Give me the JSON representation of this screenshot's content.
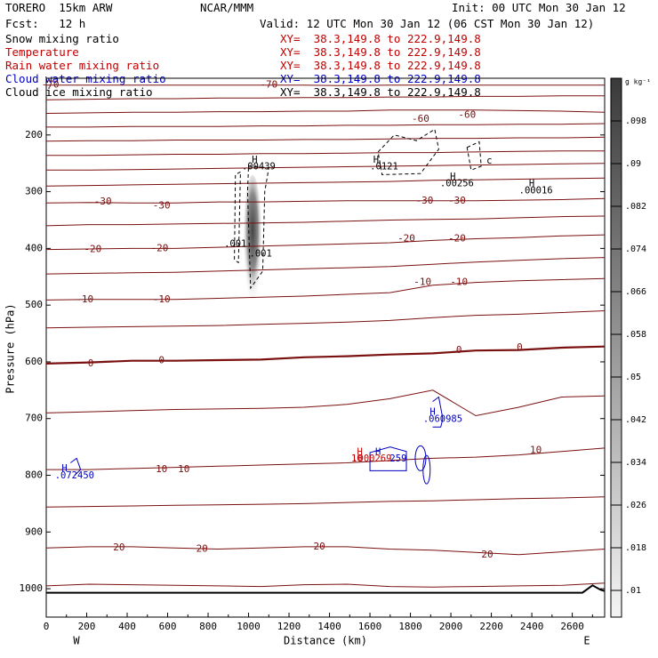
{
  "header": {
    "model": "TORERO  15km ARW",
    "org": "NCAR/MMM",
    "init": "Init: 00 UTC Mon 30 Jan 12",
    "fcst": "Fcst:   12 h",
    "valid": "Valid: 12 UTC Mon 30 Jan 12 (06 CST Mon 30 Jan 12)"
  },
  "legend": [
    {
      "name": "Snow mixing ratio",
      "xy": "XY=  38.3,149.8 to 222.9,149.8",
      "color": "#000000"
    },
    {
      "name": "Temperature",
      "xy": "XY=  38.3,149.8 to 222.9,149.8",
      "color": "#c00000"
    },
    {
      "name": "Rain water mixing ratio",
      "xy": "XY=  38.3,149.8 to 222.9,149.8",
      "color": "#c00000"
    },
    {
      "name": "Cloud water mixing ratio",
      "xy": "XY=  38.3,149.8 to 222.9,149.8",
      "color": "#0000c0"
    },
    {
      "name": "Cloud ice mixing ratio",
      "xy": "XY=  38.3,149.8 to 222.9,149.8",
      "color": "#000000"
    }
  ],
  "chart_data": {
    "type": "cross-section",
    "xlabel": "Distance (km)",
    "ylabel": "Pressure (hPa)",
    "xlim": [
      0,
      2760
    ],
    "ylim": [
      1050,
      100
    ],
    "x_ticks": [
      "0",
      "200",
      "400",
      "600",
      "800",
      "1000",
      "1200",
      "1400",
      "1600",
      "1800",
      "2000",
      "2200",
      "2400",
      "2600"
    ],
    "x_tick_values": [
      0,
      200,
      400,
      600,
      800,
      1000,
      1200,
      1400,
      1600,
      1800,
      2000,
      2200,
      2400,
      2600
    ],
    "y_ticks": [
      "200",
      "300",
      "400",
      "500",
      "600",
      "700",
      "800",
      "900",
      "1000"
    ],
    "y_tick_values": [
      200,
      300,
      400,
      500,
      600,
      700,
      800,
      900,
      1000
    ],
    "west_label": "W",
    "east_label": "E",
    "colorbar": {
      "unit": "g kg⁻¹",
      "labels": [
        ".098",
        ".09",
        ".082",
        ".074",
        ".066",
        ".058",
        ".05",
        ".042",
        ".034",
        ".026",
        ".018",
        ".01"
      ],
      "values": [
        0.098,
        0.09,
        0.082,
        0.074,
        0.066,
        0.058,
        0.05,
        0.042,
        0.034,
        0.026,
        0.018,
        0.01
      ]
    },
    "temperature_contour_labels": [
      {
        "text": "-70",
        "x": 20,
        "p": 112
      },
      {
        "text": "-70",
        "x": 1100,
        "p": 112
      },
      {
        "text": "-60",
        "x": 1850,
        "p": 172
      },
      {
        "text": "-60",
        "x": 2080,
        "p": 165
      },
      {
        "text": "-30",
        "x": 280,
        "p": 318
      },
      {
        "text": "-30",
        "x": 570,
        "p": 325
      },
      {
        "text": "-30",
        "x": 1870,
        "p": 316
      },
      {
        "text": "-30",
        "x": 2030,
        "p": 316
      },
      {
        "text": "-20",
        "x": 230,
        "p": 402
      },
      {
        "text": "-20",
        "x": 560,
        "p": 400
      },
      {
        "text": "-20",
        "x": 1780,
        "p": 383
      },
      {
        "text": "-20",
        "x": 2030,
        "p": 383
      },
      {
        "text": "-10",
        "x": 190,
        "p": 490
      },
      {
        "text": "-10",
        "x": 570,
        "p": 490
      },
      {
        "text": "-10",
        "x": 1860,
        "p": 460
      },
      {
        "text": "-10",
        "x": 2040,
        "p": 460
      },
      {
        "text": "0",
        "x": 220,
        "p": 603
      },
      {
        "text": "0",
        "x": 570,
        "p": 598
      },
      {
        "text": "0",
        "x": 2040,
        "p": 580
      },
      {
        "text": "0",
        "x": 2340,
        "p": 575
      },
      {
        "text": "10",
        "x": 570,
        "p": 790
      },
      {
        "text": "10",
        "x": 680,
        "p": 790
      },
      {
        "text": "10",
        "x": 2420,
        "p": 756
      },
      {
        "text": "20",
        "x": 360,
        "p": 928
      },
      {
        "text": "20",
        "x": 770,
        "p": 930
      },
      {
        "text": "20",
        "x": 1350,
        "p": 926
      },
      {
        "text": "20",
        "x": 2180,
        "p": 940
      }
    ],
    "annotations": [
      {
        "text": "H",
        "x": 1030,
        "p": 244,
        "color": "#000000"
      },
      {
        "text": ".00439",
        "x": 1050,
        "p": 256,
        "color": "#000000"
      },
      {
        "text": "H",
        "x": 1630,
        "p": 244,
        "color": "#000000"
      },
      {
        "text": ".0121",
        "x": 1670,
        "p": 256,
        "color": "#000000"
      },
      {
        "text": "H",
        "x": 2010,
        "p": 274,
        "color": "#000000"
      },
      {
        "text": ".00256",
        "x": 2030,
        "p": 286,
        "color": "#000000"
      },
      {
        "text": "H",
        "x": 2400,
        "p": 286,
        "color": "#000000"
      },
      {
        "text": ".00016",
        "x": 2420,
        "p": 298,
        "color": "#000000"
      },
      {
        "text": ".001",
        "x": 935,
        "p": 392,
        "color": "#000000"
      },
      {
        "text": ".001",
        "x": 1060,
        "p": 410,
        "color": "#000000"
      },
      {
        "text": "c",
        "x": 2190,
        "p": 246,
        "color": "#000000"
      },
      {
        "text": "H",
        "x": 1910,
        "p": 689,
        "color": "#0000c0"
      },
      {
        "text": ".060985",
        "x": 1960,
        "p": 701,
        "color": "#0000c0"
      },
      {
        "text": "H",
        "x": 90,
        "p": 788,
        "color": "#0000c0"
      },
      {
        "text": ".072450",
        "x": 140,
        "p": 801,
        "color": "#0000c0"
      },
      {
        "text": "H",
        "x": 1550,
        "p": 759,
        "color": "#c00000"
      },
      {
        "text": "H",
        "x": 1640,
        "p": 759,
        "color": "#0000c0"
      },
      {
        "text": "10",
        "x": 1535,
        "p": 771,
        "color": "#c00000"
      },
      {
        "text": ".000269",
        "x": 1610,
        "p": 771,
        "color": "#c00000"
      },
      {
        "text": "259",
        "x": 1740,
        "p": 771,
        "color": "#0000c0"
      }
    ],
    "isotherms": [
      {
        "t": -70,
        "p": [
          112,
          112,
          112,
          112,
          112,
          112,
          112,
          113,
          112,
          112,
          112,
          112,
          112,
          112
        ]
      },
      {
        "t": -65,
        "p": [
          138,
          137,
          136,
          136,
          135,
          135,
          134,
          134,
          133,
          133,
          132,
          132,
          131,
          131
        ]
      },
      {
        "t": -60,
        "p": [
          162,
          161,
          160,
          160,
          159,
          159,
          158,
          158,
          156,
          156,
          156,
          157,
          158,
          160
        ]
      },
      {
        "t": -55,
        "p": [
          186,
          186,
          185,
          185,
          185,
          184,
          184,
          183,
          183,
          182,
          182,
          181,
          181,
          180
        ]
      },
      {
        "t": -50,
        "p": [
          211,
          210,
          210,
          209,
          209,
          209,
          208,
          208,
          207,
          206,
          206,
          205,
          205,
          204
        ]
      },
      {
        "t": -45,
        "p": [
          236,
          236,
          235,
          234,
          234,
          233,
          233,
          232,
          231,
          231,
          230,
          229,
          228,
          228
        ]
      },
      {
        "t": -40,
        "p": [
          262,
          262,
          261,
          260,
          259,
          258,
          257,
          256,
          255,
          254,
          253,
          252,
          251,
          250
        ]
      },
      {
        "t": -35,
        "p": [
          290,
          289,
          288,
          287,
          286,
          285,
          284,
          283,
          282,
          280,
          279,
          278,
          277,
          276
        ]
      },
      {
        "t": -30,
        "p": [
          320,
          319,
          320,
          320,
          318,
          318,
          317,
          316,
          316,
          316,
          316,
          315,
          314,
          312
        ]
      },
      {
        "t": -25,
        "p": [
          360,
          358,
          358,
          357,
          356,
          355,
          354,
          352,
          350,
          349,
          348,
          346,
          344,
          343
        ]
      },
      {
        "t": -20,
        "p": [
          402,
          401,
          400,
          400,
          398,
          396,
          394,
          392,
          390,
          386,
          383,
          381,
          378,
          376
        ]
      },
      {
        "t": -15,
        "p": [
          445,
          444,
          443,
          442,
          440,
          438,
          436,
          434,
          432,
          428,
          424,
          421,
          418,
          416
        ]
      },
      {
        "t": -10,
        "p": [
          491,
          490,
          490,
          490,
          488,
          486,
          484,
          481,
          478,
          465,
          460,
          457,
          455,
          453
        ]
      },
      {
        "t": -5,
        "p": [
          540,
          539,
          538,
          537,
          536,
          534,
          532,
          530,
          527,
          522,
          518,
          516,
          513,
          510
        ]
      },
      {
        "t": 0,
        "p": [
          603,
          601,
          598,
          598,
          597,
          596,
          592,
          590,
          587,
          585,
          580,
          579,
          575,
          573
        ]
      },
      {
        "t": 5,
        "p": [
          690,
          688,
          686,
          684,
          683,
          682,
          680,
          675,
          665,
          650,
          695,
          680,
          662,
          660
        ]
      },
      {
        "t": 10,
        "p": [
          790,
          790,
          788,
          786,
          784,
          782,
          780,
          778,
          774,
          770,
          768,
          764,
          758,
          752
        ]
      },
      {
        "t": 15,
        "p": [
          856,
          855,
          854,
          853,
          852,
          851,
          850,
          848,
          846,
          845,
          843,
          841,
          840,
          838
        ]
      },
      {
        "t": 20,
        "p": [
          928,
          926,
          926,
          928,
          930,
          928,
          926,
          926,
          930,
          932,
          936,
          940,
          935,
          930
        ]
      },
      {
        "t": 25,
        "p": [
          995,
          992,
          993,
          994,
          995,
          996,
          993,
          992,
          996,
          997,
          996,
          995,
          994,
          990
        ]
      }
    ]
  }
}
